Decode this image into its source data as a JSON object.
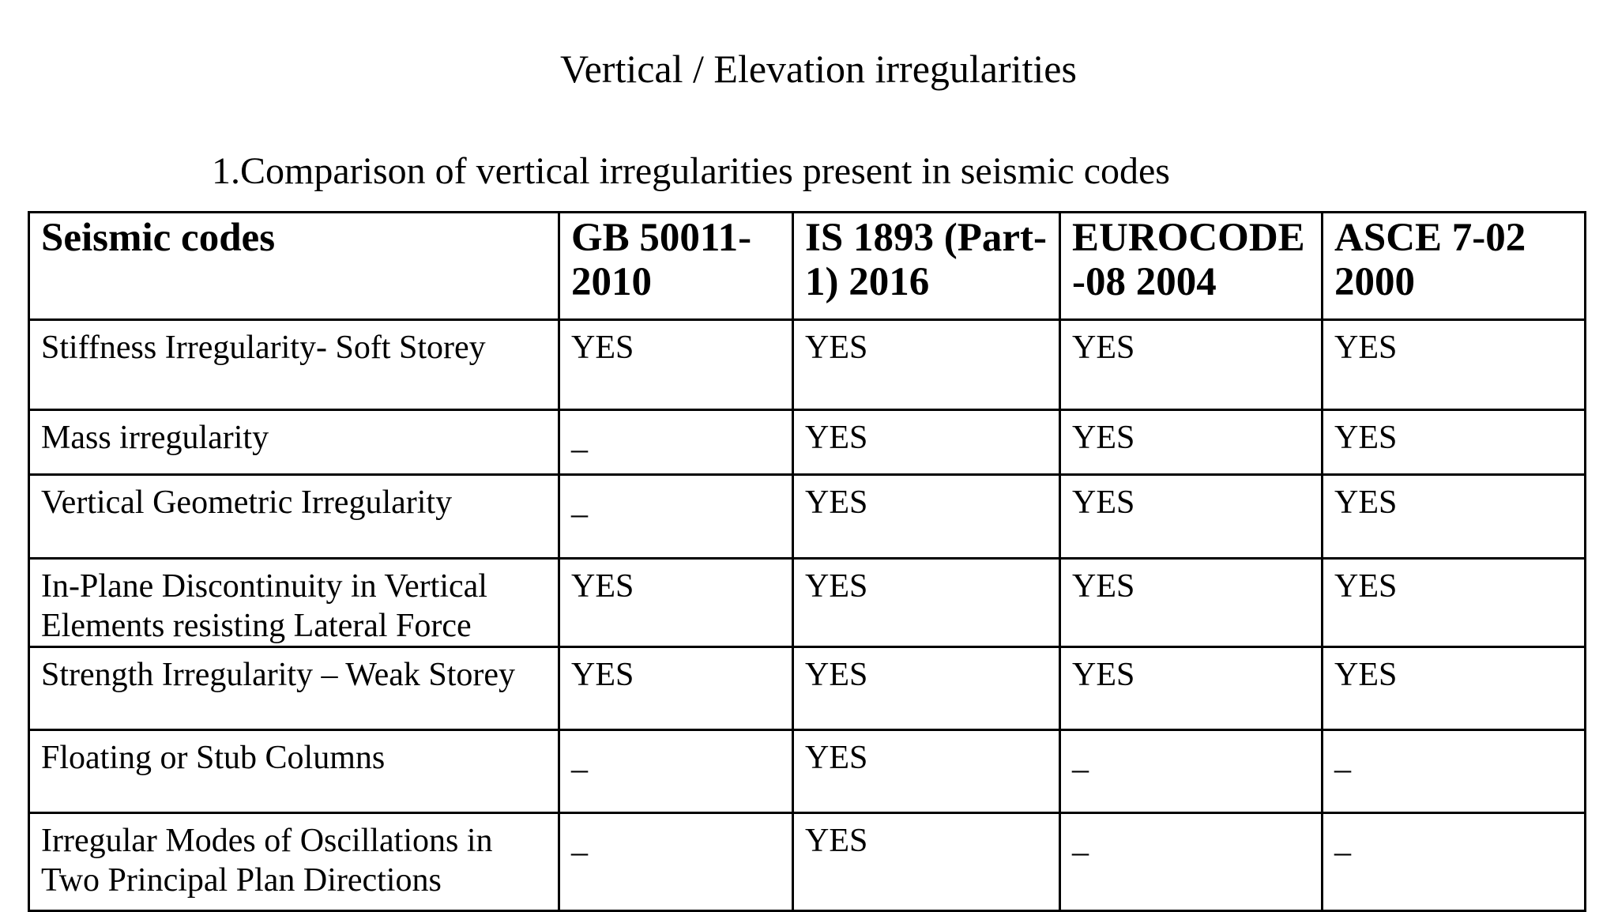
{
  "title": "Vertical / Elevation irregularities",
  "caption": "1.Comparison of vertical irregularities present in seismic codes",
  "colors": {
    "background": "#ffffff",
    "text": "#000000",
    "border": "#000000"
  },
  "table": {
    "columns": [
      "Seismic codes",
      "GB 50011-2010",
      "IS 1893 (Part-1) 2016",
      "EUROCODE -08 2004",
      "ASCE 7-02 2000"
    ],
    "rows": [
      {
        "label": "Stiffness Irregularity- Soft Storey",
        "values": [
          "YES",
          "YES",
          "YES",
          "YES"
        ]
      },
      {
        "label": "Mass irregularity",
        "values": [
          "_",
          "YES",
          "YES",
          "YES"
        ]
      },
      {
        "label": "Vertical Geometric Irregularity",
        "values": [
          "_",
          "YES",
          "YES",
          "YES"
        ]
      },
      {
        "label": "In-Plane Discontinuity in Vertical Elements resisting Lateral Force",
        "values": [
          "YES",
          "YES",
          "YES",
          "YES"
        ]
      },
      {
        "label": "Strength Irregularity – Weak Storey",
        "values": [
          "YES",
          "YES",
          "YES",
          "YES"
        ]
      },
      {
        "label": "Floating or Stub Columns",
        "values": [
          "_",
          "YES",
          "_",
          "_"
        ]
      },
      {
        "label": "Irregular Modes of Oscillations in Two Principal Plan Directions",
        "values": [
          "_",
          "YES",
          "_",
          "_"
        ]
      }
    ]
  }
}
